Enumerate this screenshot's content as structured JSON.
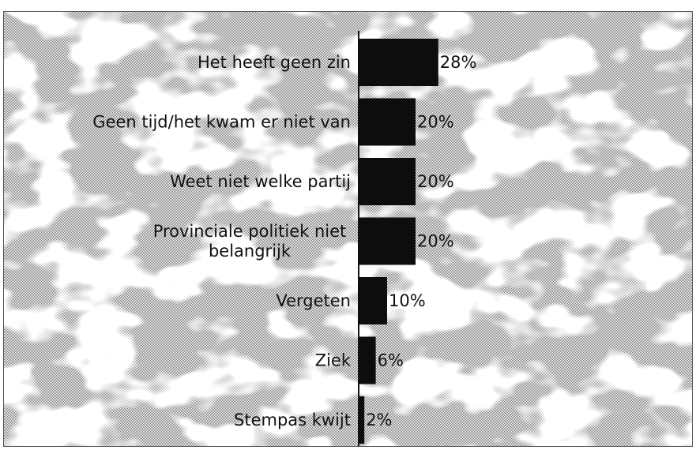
{
  "chart_data": {
    "type": "bar",
    "orientation": "horizontal",
    "categories": [
      [
        "Het heeft geen zin"
      ],
      [
        "Geen tijd/het kwam er niet van"
      ],
      [
        "Weet niet welke partij"
      ],
      [
        "Provinciale politiek niet",
        "belangrijk"
      ],
      [
        "Vergeten"
      ],
      [
        "Ziek"
      ],
      [
        "Stempas kwijt"
      ]
    ],
    "values": [
      28,
      20,
      20,
      20,
      10,
      6,
      2
    ],
    "value_labels": [
      "28%",
      "20%",
      "20%",
      "20%",
      "10%",
      "6%",
      "2%"
    ],
    "unit": "%",
    "xlim": [
      0,
      120
    ],
    "grid": false,
    "legend": "none",
    "colors": {
      "bar": "#0d0d0d",
      "background_dither_dark": "#8a8a8a",
      "background_dither_light": "#ffffff"
    }
  }
}
